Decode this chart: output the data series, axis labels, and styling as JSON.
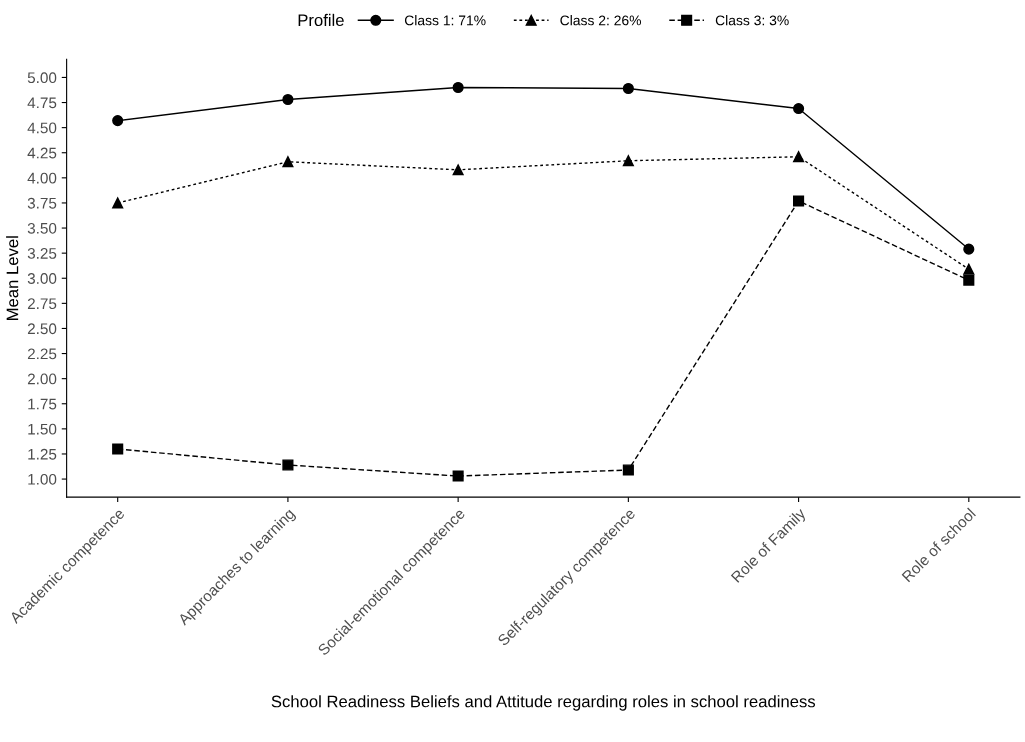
{
  "chart_data": {
    "type": "line",
    "xlabel": "School Readiness Beliefs and Attitude regarding roles in school readiness",
    "ylabel": "Mean Level",
    "legend_title": "Profile",
    "legend": "top",
    "grid": false,
    "categories": [
      "Academic competence",
      "Approaches to learning",
      "Social-emotional competence",
      "Self-regulatory competence",
      "Role of Family",
      "Role of school"
    ],
    "ylim": [
      0.82,
      5.18
    ],
    "yticks": [
      {
        "value": 1,
        "label": "1.00"
      },
      {
        "value": 1.25,
        "label": "1.25"
      },
      {
        "value": 1.5,
        "label": "1.50"
      },
      {
        "value": 1.75,
        "label": "1.75"
      },
      {
        "value": 2,
        "label": "2.00"
      },
      {
        "value": 2.25,
        "label": "2.25"
      },
      {
        "value": 2.5,
        "label": "2.50"
      },
      {
        "value": 2.75,
        "label": "2.75"
      },
      {
        "value": 3,
        "label": "3.00"
      },
      {
        "value": 3.25,
        "label": "3.25"
      },
      {
        "value": 3.5,
        "label": "3.50"
      },
      {
        "value": 3.75,
        "label": "3.75"
      },
      {
        "value": 4,
        "label": "4.00"
      },
      {
        "value": 4.25,
        "label": "4.25"
      },
      {
        "value": 4.5,
        "label": "4.50"
      },
      {
        "value": 4.75,
        "label": "4.75"
      },
      {
        "value": 5,
        "label": "5.00"
      }
    ],
    "series": [
      {
        "name": "Class 1: 71%",
        "color": "#000000",
        "marker": "circle",
        "line_style": "solid",
        "values": [
          4.57,
          4.78,
          4.9,
          4.89,
          4.69,
          3.29
        ]
      },
      {
        "name": "Class 2: 26%",
        "color": "#000000",
        "marker": "triangle",
        "line_style": "dotted",
        "values": [
          3.75,
          4.16,
          4.08,
          4.17,
          4.21,
          3.09
        ]
      },
      {
        "name": "Class 3: 3%",
        "color": "#000000",
        "marker": "square",
        "line_style": "dashed",
        "values": [
          1.3,
          1.14,
          1.03,
          1.09,
          3.77,
          2.98
        ]
      }
    ]
  }
}
